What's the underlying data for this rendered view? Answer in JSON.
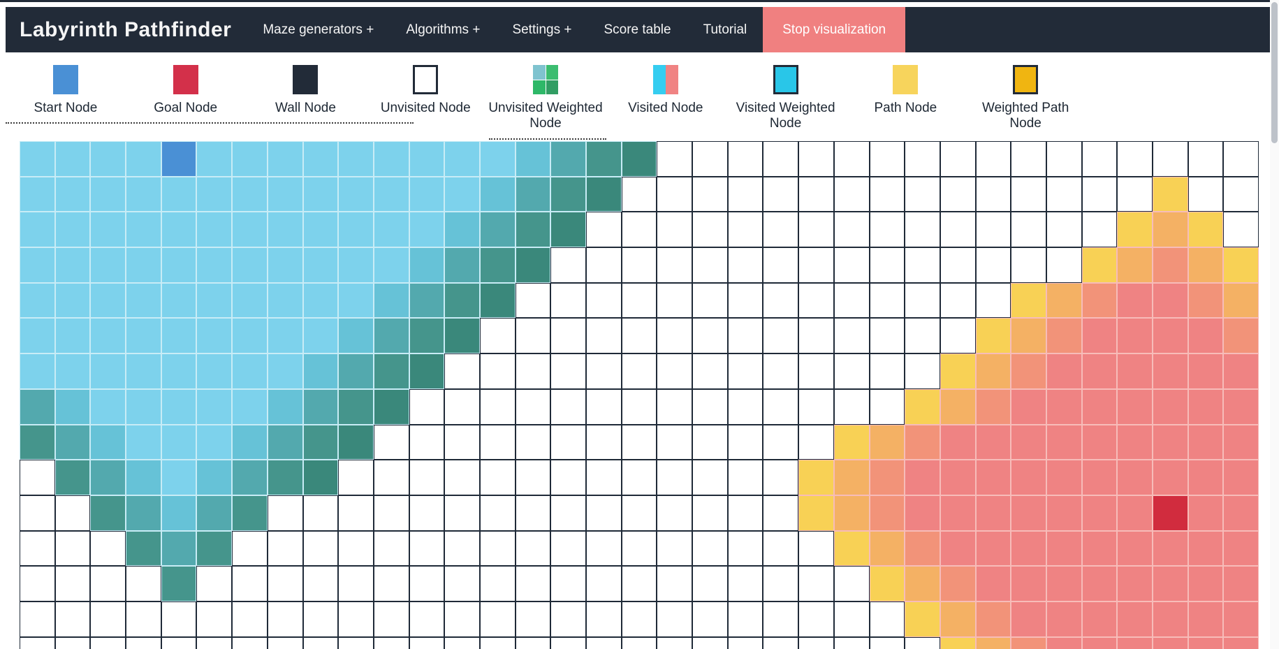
{
  "navbar": {
    "title": "Labyrinth Pathfinder",
    "items": [
      {
        "label": "Maze generators +"
      },
      {
        "label": "Algorithms +"
      },
      {
        "label": "Settings +"
      },
      {
        "label": "Score table"
      },
      {
        "label": "Tutorial"
      }
    ],
    "stop_button_label": "Stop visualization",
    "colors": {
      "bg": "#222b38",
      "text": "#f5f5f5",
      "stop_bg": "#f08080"
    }
  },
  "legend": {
    "items": [
      {
        "key": "start-node",
        "label": "Start Node",
        "type": "solid",
        "colors": [
          "#4a90d5"
        ]
      },
      {
        "key": "goal-node",
        "label": "Goal Node",
        "type": "solid",
        "colors": [
          "#d3304a"
        ]
      },
      {
        "key": "wall-node",
        "label": "Wall Node",
        "type": "solid",
        "colors": [
          "#222b38"
        ]
      },
      {
        "key": "unvisited-node",
        "label": "Unvisited Node",
        "type": "bordered",
        "colors": [
          "#ffffff",
          "#222b38"
        ]
      },
      {
        "key": "unvisited-weighted-node",
        "label": "Unvisited Weighted Node",
        "type": "quad",
        "colors": [
          "#7fc3cf",
          "#3cbd70",
          "#2eb868",
          "#319d63"
        ]
      },
      {
        "key": "visited-node",
        "label": "Visited Node",
        "type": "split",
        "colors": [
          "#35cdf0",
          "#f08383"
        ]
      },
      {
        "key": "visited-weighted-node",
        "label": "Visited Weighted Node",
        "type": "bordered",
        "colors": [
          "#29c6e8",
          "#222b38"
        ]
      },
      {
        "key": "path-node",
        "label": "Path Node",
        "type": "solid",
        "colors": [
          "#f7d45c"
        ]
      },
      {
        "key": "weighted-path-node",
        "label": "Weighted Path Node",
        "type": "bordered",
        "colors": [
          "#f0b511",
          "#222b38"
        ]
      }
    ]
  },
  "grid": {
    "cols": 35,
    "rows": 15,
    "start": {
      "row": 0,
      "col": 4
    },
    "goal": {
      "row": 10,
      "col": 32
    },
    "rows_data": [
      "aaaaSaaaaaaaaabcde.................",
      "aaaaaaaaaaaaabcde...............y..",
      "aaaaaaaaaaaabcde...............yoy.",
      "aaaaaaaaaaabcde...............yopoy",
      "aaaaaaaaaabcde..............yoprrpo",
      "aaaaaaaaabcde..............yoprrrrp",
      "aaaaaaaabcde..............yoprrrrrr",
      "cbaaaaabcde..............yoprrrrrrr",
      "dcbaaabcde.............yoprrrrrrrrr",
      ".dcbabcde.............yoprrrrrrrrrr",
      "..dcbcd...............yoprrrrrrrGrr",
      "...dcd.................yoprrrrrrrrr",
      "....d...................yoprrrrrrrr",
      ".........................yoprrrrrrr",
      "..........................yoprrrrrr"
    ],
    "palette": {
      ".": "#ffffff",
      "a": "#7dd2ec",
      "b": "#66c2d7",
      "c": "#53a9ae",
      "d": "#45958c",
      "e": "#3a887b",
      "S": "#4a90d5",
      "y": "#f8d155",
      "o": "#f4b164",
      "p": "#f29379",
      "r": "#ef8383",
      "G": "#d12c3e"
    },
    "line_colors": {
      ".": "#1f2a38",
      "a": "#c8ecf6",
      "b": "#c8ecf6",
      "c": "#c8ecf6",
      "d": "#c8ecf6",
      "e": "#c8ecf6",
      "S": "#c8ecf6",
      "y": "#f7bcb9",
      "o": "#f7bcb9",
      "p": "#f7bcb9",
      "r": "#f7bcb9",
      "G": "#f7bcb9"
    }
  }
}
